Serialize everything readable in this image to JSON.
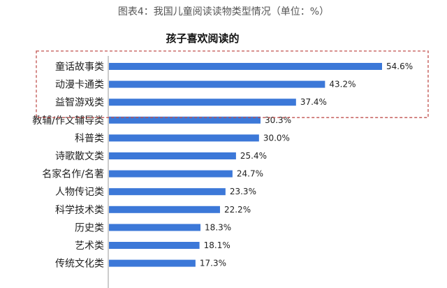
{
  "figure_caption": "图表4：我国儿童阅读读物类型情况（单位：%）",
  "chart_data": {
    "type": "bar",
    "orientation": "horizontal",
    "title": "孩子喜欢阅读的",
    "categories": [
      "童话故事类",
      "动漫卡通类",
      "益智游戏类",
      "教辅/作文辅导类",
      "科普类",
      "诗歌散文类",
      "名家名作/名著",
      "人物传记类",
      "科学技术类",
      "历史类",
      "艺术类",
      "传统文化类"
    ],
    "values": [
      54.6,
      43.2,
      37.4,
      30.3,
      30.0,
      25.4,
      24.7,
      23.3,
      22.2,
      18.3,
      18.1,
      17.3
    ],
    "value_labels": [
      "54.6%",
      "43.2%",
      "37.4%",
      "30.3%",
      "30.0%",
      "25.4%",
      "24.7%",
      "23.3%",
      "22.2%",
      "18.3%",
      "18.1%",
      "17.3%"
    ],
    "xlim": [
      0,
      54.6
    ],
    "grid": false,
    "highlight": {
      "categories": [
        "童话故事类",
        "动漫卡通类",
        "益智游戏类"
      ],
      "color": "#c0504d",
      "style": "dashed-box"
    },
    "bar_color": "#3c78d8"
  }
}
